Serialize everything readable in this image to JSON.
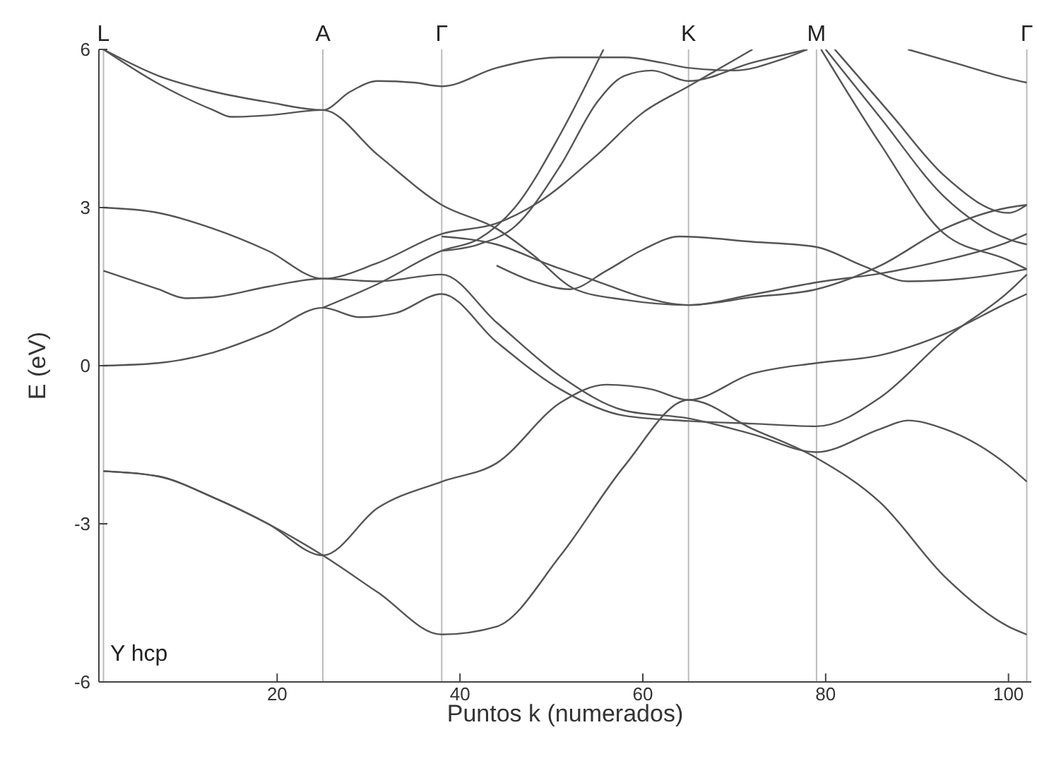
{
  "chart_data": {
    "type": "line",
    "xlabel": "Puntos k (numerados)",
    "ylabel": "E (eV)",
    "xlim": [
      0.5,
      102.5
    ],
    "ylim": [
      -6,
      6
    ],
    "xticks": [
      20,
      40,
      60,
      80,
      100
    ],
    "yticks": [
      -6,
      -3,
      0,
      3,
      6
    ],
    "grid": false,
    "line_style": "solid",
    "annotations": [
      "Y hcp"
    ],
    "ref_lines": [
      {
        "axis": "x",
        "value": 1,
        "label": "L",
        "color": "#bbbbbb"
      },
      {
        "axis": "x",
        "value": 25,
        "label": "A",
        "color": "#bbbbbb"
      },
      {
        "axis": "x",
        "value": 38,
        "label": "Γ",
        "color": "#bbbbbb"
      },
      {
        "axis": "x",
        "value": 65,
        "label": "K",
        "color": "#bbbbbb"
      },
      {
        "axis": "x",
        "value": 79,
        "label": "M",
        "color": "#bbbbbb"
      },
      {
        "axis": "x",
        "value": 102,
        "label": "Γ",
        "color": "#bbbbbb"
      }
    ],
    "series": [
      {
        "color": "#555555",
        "x": [
          1,
          7,
          13,
          19,
          25,
          31,
          38,
          44,
          51,
          58,
          65,
          72,
          79,
          86,
          93,
          100,
          102
        ],
        "values": [
          -2.0,
          -2.1,
          -2.5,
          -3.0,
          -3.6,
          -4.3,
          -5.1,
          -4.95,
          -3.6,
          -1.9,
          -0.65,
          -1.2,
          -1.75,
          -2.6,
          -4.0,
          -4.95,
          -5.1
        ]
      },
      {
        "color": "#555555",
        "x": [
          1,
          7,
          13,
          19,
          25,
          31,
          38,
          44,
          51,
          56,
          61,
          65,
          72,
          79,
          86,
          93,
          100,
          102
        ],
        "values": [
          -2.0,
          -2.1,
          -2.5,
          -3.0,
          -3.6,
          -2.7,
          -2.2,
          -1.85,
          -0.7,
          -0.36,
          -0.45,
          -0.65,
          -0.15,
          0.05,
          0.2,
          0.6,
          1.2,
          1.36
        ]
      },
      {
        "color": "#555555",
        "x": [
          1,
          7,
          13,
          19,
          25,
          29,
          33,
          38,
          44,
          51,
          58,
          65,
          72,
          79,
          86,
          93,
          100,
          102
        ],
        "values": [
          0.0,
          0.05,
          0.25,
          0.63,
          1.1,
          0.92,
          1.0,
          1.36,
          0.45,
          -0.45,
          -0.95,
          -1.05,
          -1.1,
          -1.15,
          -0.6,
          0.5,
          1.4,
          1.73
        ]
      },
      {
        "color": "#555555",
        "x": [
          1,
          7,
          10,
          13,
          19,
          25,
          31,
          38,
          44,
          51,
          58,
          65,
          72,
          79,
          86,
          89,
          93,
          100,
          102
        ],
        "values": [
          1.8,
          1.45,
          1.28,
          1.3,
          1.5,
          1.65,
          1.6,
          1.73,
          0.82,
          -0.2,
          -0.85,
          -1.0,
          -1.3,
          -1.64,
          -1.2,
          -1.04,
          -1.2,
          -1.9,
          -2.2
        ]
      },
      {
        "color": "#555555",
        "x": [
          25,
          31,
          38,
          42,
          46,
          51,
          55.7
        ],
        "values": [
          1.1,
          1.55,
          2.18,
          2.4,
          3.0,
          4.4,
          6.0
        ]
      },
      {
        "color": "#555555",
        "x": [
          1,
          7,
          13,
          19,
          25,
          31,
          38,
          44,
          48.5,
          55,
          60,
          65,
          70,
          72
        ],
        "values": [
          3.0,
          2.9,
          2.6,
          2.18,
          1.65,
          1.95,
          2.5,
          2.7,
          3.09,
          4.0,
          4.8,
          5.3,
          5.8,
          6.0
        ]
      },
      {
        "color": "#555555",
        "x": [
          38,
          44,
          50,
          55,
          60,
          65,
          72,
          79,
          86,
          93,
          100,
          102
        ],
        "values": [
          2.45,
          2.3,
          1.9,
          1.6,
          1.3,
          1.15,
          1.3,
          1.45,
          1.9,
          2.6,
          3.0,
          3.05
        ]
      },
      {
        "color": "#555555",
        "x": [
          44,
          48,
          52,
          56,
          60,
          64,
          72,
          79,
          84,
          89,
          95,
          102
        ],
        "values": [
          1.9,
          1.6,
          1.45,
          1.8,
          2.2,
          2.45,
          2.35,
          2.25,
          1.9,
          1.6,
          1.65,
          1.83
        ]
      },
      {
        "color": "#555555",
        "x": [
          1,
          7,
          13,
          15,
          19,
          25,
          31,
          38,
          44,
          48,
          52.6,
          58,
          65,
          72,
          79,
          86,
          93,
          100,
          102
        ],
        "values": [
          6.0,
          5.35,
          4.85,
          4.72,
          4.75,
          4.85,
          4.0,
          3.05,
          2.6,
          2.1,
          1.45,
          1.25,
          1.15,
          1.35,
          1.58,
          1.75,
          2.0,
          2.35,
          2.5
        ]
      },
      {
        "color": "#555555",
        "x": [
          1,
          7,
          13,
          19,
          25,
          28,
          31,
          35,
          38,
          44,
          51,
          58,
          62,
          65,
          70,
          75,
          78
        ],
        "values": [
          6.0,
          5.5,
          5.2,
          5.0,
          4.85,
          5.2,
          5.4,
          5.37,
          5.3,
          5.65,
          5.85,
          5.85,
          5.75,
          5.65,
          5.6,
          5.8,
          6.0
        ]
      },
      {
        "color": "#555555",
        "x": [
          38,
          42,
          46,
          51,
          55,
          58,
          61,
          65,
          72,
          78
        ],
        "values": [
          2.18,
          2.3,
          2.64,
          3.8,
          5.0,
          5.5,
          5.6,
          5.4,
          5.75,
          6.0
        ]
      },
      {
        "color": "#555555",
        "x": [
          80,
          86,
          93,
          100,
          102
        ],
        "values": [
          6.0,
          4.7,
          3.2,
          2.4,
          2.3
        ]
      },
      {
        "color": "#555555",
        "x": [
          81,
          87,
          93,
          100,
          102
        ],
        "values": [
          6.0,
          4.8,
          3.6,
          2.9,
          3.05
        ]
      },
      {
        "color": "#555555",
        "x": [
          79.5,
          86,
          93,
          100,
          102
        ],
        "values": [
          6.0,
          4.2,
          2.5,
          2.0,
          1.83
        ]
      },
      {
        "color": "#555555",
        "x": [
          89,
          95,
          100,
          102
        ],
        "values": [
          6.0,
          5.7,
          5.45,
          5.37
        ]
      }
    ]
  }
}
